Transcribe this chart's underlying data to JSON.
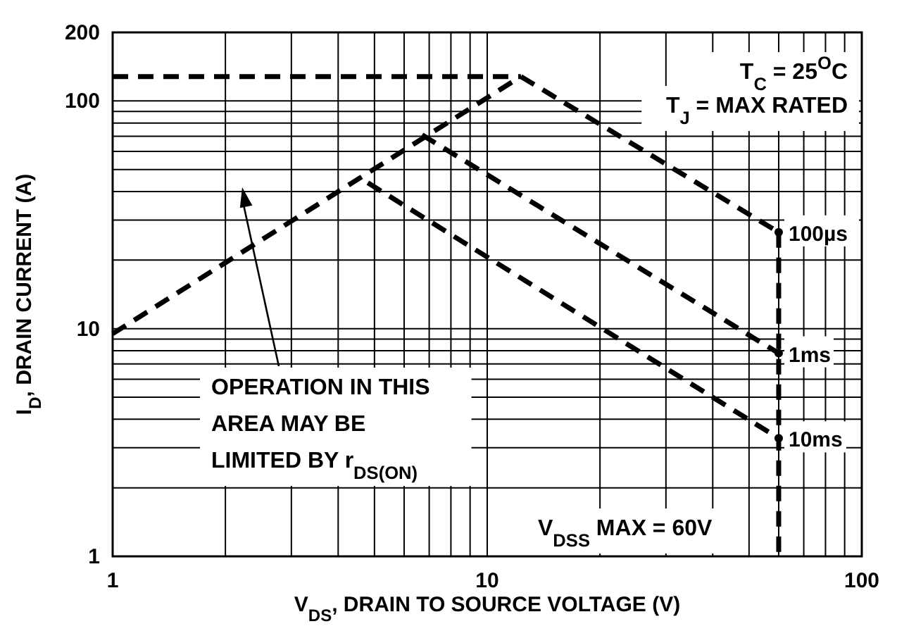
{
  "chart_data": {
    "type": "line",
    "xlabel": "V$_{DS}$, DRAIN TO SOURCE VOLTAGE (V)",
    "ylabel": "I$_{D}$, DRAIN CURRENT (A)",
    "log": "xy",
    "grid": true,
    "line_style": "dashed",
    "xlim": [
      1,
      100
    ],
    "xticks": [
      1,
      10,
      100
    ],
    "ylim": [
      1,
      200
    ],
    "yticks": [
      1,
      10,
      100,
      200
    ],
    "series": [
      {
        "color": "#000000",
        "x": [
          1,
          12.3
        ],
        "values": [
          9.5,
          128
        ]
      },
      {
        "color": "#000000",
        "x": [
          1,
          12.3
        ],
        "values": [
          128,
          128
        ]
      },
      {
        "name": "100µs",
        "color": "#000000",
        "x": [
          12.3,
          60
        ],
        "values": [
          128,
          26.5
        ]
      },
      {
        "name": "1ms",
        "color": "#000000",
        "x": [
          6.7,
          60
        ],
        "values": [
          71,
          7.8
        ]
      },
      {
        "name": "10ms",
        "color": "#000000",
        "x": [
          4.8,
          60
        ],
        "values": [
          43.7,
          3.3
        ]
      },
      {
        "color": "#000000",
        "x": [
          60,
          60
        ],
        "values": [
          26.5,
          1
        ]
      }
    ],
    "annotations": [
      "T$_{C}$ = 25$^{O}$C",
      "T$_{J}$ = MAX RATED",
      "OPERATION IN THIS\nAREA MAY BE\nLIMITED BY r$_{DS(ON)}$",
      "V$_{DSS}$ MAX = 60V"
    ]
  }
}
